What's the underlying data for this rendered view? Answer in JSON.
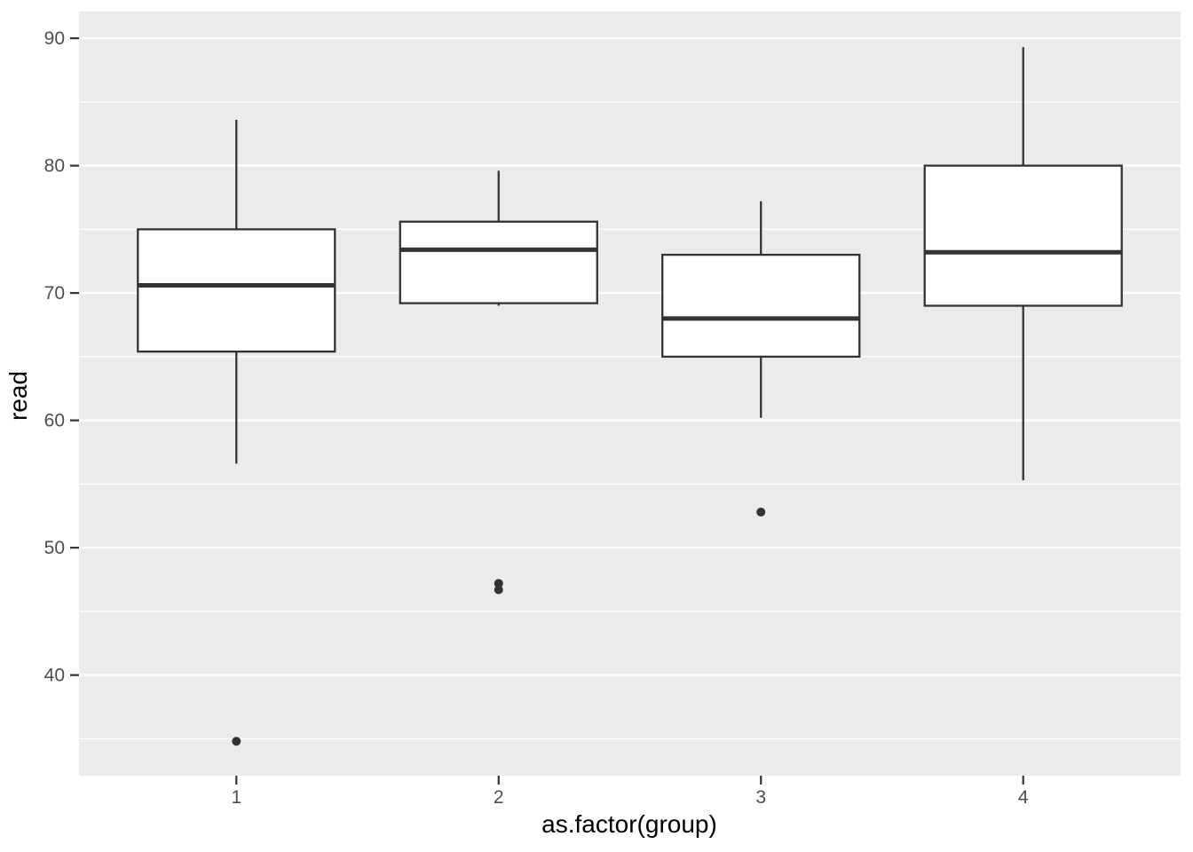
{
  "chart_data": {
    "type": "boxplot",
    "title": "",
    "xlabel": "as.factor(group)",
    "ylabel": "read",
    "categories": [
      "1",
      "2",
      "3",
      "4"
    ],
    "series": [
      {
        "group": "1",
        "whisker_low": 56.6,
        "q1": 65.4,
        "median": 70.6,
        "q3": 75.0,
        "whisker_high": 83.6,
        "outliers": [
          34.8
        ]
      },
      {
        "group": "2",
        "whisker_low": 69.0,
        "q1": 69.2,
        "median": 73.4,
        "q3": 75.6,
        "whisker_high": 79.6,
        "outliers": [
          46.7,
          47.2
        ]
      },
      {
        "group": "3",
        "whisker_low": 60.2,
        "q1": 65.0,
        "median": 68.0,
        "q3": 73.0,
        "whisker_high": 77.2,
        "outliers": [
          52.8
        ]
      },
      {
        "group": "4",
        "whisker_low": 55.3,
        "q1": 69.0,
        "median": 73.2,
        "q3": 80.0,
        "whisker_high": 89.3,
        "outliers": []
      }
    ],
    "y_ticks": [
      40,
      50,
      60,
      70,
      80,
      90
    ],
    "y_minor_gridlines": [
      35,
      45,
      55,
      65,
      75,
      85
    ],
    "ylim": [
      32.1,
      92.1
    ],
    "grid": "major-and-minor",
    "legend": "none",
    "theme": {
      "panel_background": "#EBEBEB",
      "gridline_color": "#FFFFFF",
      "box_fill": "#FFFFFF",
      "box_stroke": "#333333",
      "median_color": "#333333",
      "whisker_color": "#333333",
      "outlier_color": "#333333",
      "tick_mark_color": "#333333",
      "tick_label_color": "#4D4D4D",
      "axis_title_color": "#000000",
      "figure_background": "#FFFFFF"
    }
  }
}
